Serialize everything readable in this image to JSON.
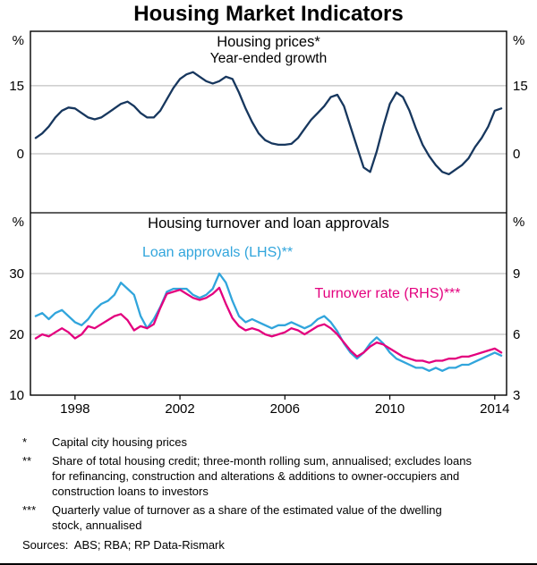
{
  "title": "Housing Market Indicators",
  "colors": {
    "housing_prices": "#17375E",
    "loan_approvals": "#31A5DC",
    "turnover_rate": "#E3007E",
    "grid": "#B3B3B3",
    "frame": "#000000"
  },
  "x_axis": {
    "min": 1996.3,
    "max": 2014.45,
    "ticks": [
      1998,
      2002,
      2006,
      2010,
      2014
    ]
  },
  "chart_data": [
    {
      "type": "line",
      "panel": "top",
      "title": "Housing prices*",
      "subtitle": "Year-ended growth",
      "unit_left": "%",
      "unit_right": "%",
      "ylim": [
        -13,
        27
      ],
      "yticks": [
        0,
        15
      ],
      "x_start": 1996.5,
      "x_step": 0.25,
      "series": [
        {
          "id": "housing-prices",
          "name": "Housing prices (year-ended growth, %)",
          "axis": "left",
          "color_key": "housing_prices",
          "values": [
            3.5,
            4.5,
            6,
            8,
            9.5,
            10.2,
            10,
            9,
            8,
            7.6,
            8,
            9,
            10,
            11,
            11.5,
            10.5,
            9,
            8,
            8,
            9.5,
            12,
            14.5,
            16.5,
            17.5,
            18,
            17,
            16,
            15.5,
            16,
            17,
            16.5,
            13.5,
            10,
            7,
            4.5,
            3,
            2.3,
            2,
            2,
            2.2,
            3.5,
            5.5,
            7.5,
            9,
            10.5,
            12.5,
            13,
            10.5,
            6,
            1.5,
            -3,
            -4,
            0.5,
            6,
            11,
            13.5,
            12.5,
            9.5,
            5.5,
            2,
            -0.5,
            -2.5,
            -4,
            -4.5,
            -3.5,
            -2.5,
            -1,
            1.5,
            3.5,
            6,
            9.5,
            10
          ]
        }
      ]
    },
    {
      "type": "line",
      "panel": "bottom",
      "title": "Housing turnover and loan approvals",
      "unit_left": "%",
      "unit_right": "%",
      "ylim_left": [
        10,
        40
      ],
      "ylim_right": [
        3,
        12
      ],
      "yticks_left": [
        10,
        20,
        30
      ],
      "yticks_right": [
        3,
        6,
        9
      ],
      "x_start": 1996.5,
      "x_step": 0.25,
      "series": [
        {
          "id": "loan-approvals",
          "name": "Loan approvals (LHS)**",
          "label": "Loan approvals (LHS)**",
          "axis": "left",
          "color_key": "loan_approvals",
          "values": [
            23,
            23.5,
            22.5,
            23.5,
            24,
            23,
            22,
            21.5,
            22.5,
            24,
            25,
            25.5,
            26.5,
            28.5,
            27.5,
            26.5,
            23,
            21,
            22.5,
            24.5,
            27,
            27.5,
            27.5,
            27.5,
            26.5,
            26,
            26.5,
            27.5,
            30,
            28.5,
            25.5,
            23,
            22,
            22.5,
            22,
            21.5,
            21,
            21.5,
            21.5,
            22,
            21.5,
            21,
            21.5,
            22.5,
            23,
            22,
            20.5,
            18.5,
            17,
            16,
            17,
            18.5,
            19.5,
            18.5,
            17,
            16,
            15.5,
            15,
            14.5,
            14.5,
            14,
            14.5,
            14,
            14.5,
            14.5,
            15,
            15,
            15.5,
            16,
            16.5,
            17,
            16.5
          ]
        },
        {
          "id": "turnover-rate",
          "name": "Turnover rate (RHS)***",
          "label": "Turnover rate (RHS)***",
          "axis": "right",
          "color_key": "turnover_rate",
          "values": [
            5.8,
            6,
            5.9,
            6.1,
            6.3,
            6.1,
            5.8,
            6,
            6.4,
            6.3,
            6.5,
            6.7,
            6.9,
            7,
            6.7,
            6.2,
            6.4,
            6.3,
            6.5,
            7.3,
            8,
            8.1,
            8.2,
            8,
            7.8,
            7.7,
            7.8,
            8,
            8.3,
            7.5,
            6.8,
            6.4,
            6.2,
            6.3,
            6.2,
            6,
            5.9,
            6,
            6.1,
            6.3,
            6.2,
            6,
            6.2,
            6.4,
            6.5,
            6.3,
            6,
            5.6,
            5.2,
            4.9,
            5.1,
            5.4,
            5.6,
            5.5,
            5.3,
            5.1,
            4.9,
            4.8,
            4.7,
            4.7,
            4.6,
            4.7,
            4.7,
            4.8,
            4.8,
            4.9,
            4.9,
            5,
            5.1,
            5.2,
            5.3,
            5.1
          ]
        }
      ]
    }
  ],
  "footnotes": [
    {
      "marker": "*",
      "text": "Capital city housing prices"
    },
    {
      "marker": "**",
      "text": "Share of total housing credit; three-month rolling sum, annualised; excludes loans for refinancing, construction and alterations & additions to owner-occupiers and construction loans to investors"
    },
    {
      "marker": "***",
      "text": "Quarterly value of turnover as a share of the estimated value of the dwelling stock, annualised"
    }
  ],
  "sources": "Sources:  ABS; RBA; RP Data-Rismark"
}
